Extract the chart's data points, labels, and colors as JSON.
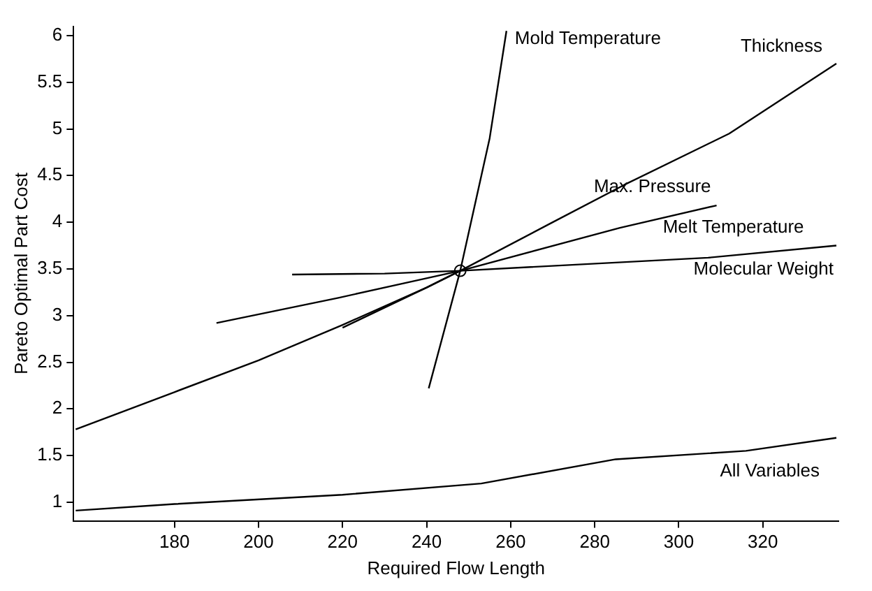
{
  "chart_data": {
    "type": "line",
    "xlabel": "Required Flow Length",
    "ylabel": "Pareto Optimal Part Cost",
    "xlim": [
      156,
      338
    ],
    "ylim": [
      0.8,
      6.1
    ],
    "xticks": [
      180,
      200,
      220,
      240,
      260,
      280,
      300,
      320
    ],
    "yticks": [
      1,
      1.5,
      2,
      2.5,
      3,
      3.5,
      4,
      4.5,
      5,
      5.5,
      6
    ],
    "grid": false,
    "legend": false,
    "marker": "none",
    "line_style": "solid",
    "series": [
      {
        "color": "#000000",
        "x": [
          156.5,
          180,
          200,
          220,
          240,
          248,
          270,
          287,
          312,
          337.5
        ],
        "values": [
          1.78,
          2.18,
          2.52,
          2.9,
          3.3,
          3.48,
          4.0,
          4.4,
          4.95,
          5.7
        ]
      },
      {
        "color": "#000000",
        "x": [
          220,
          240,
          248,
          286,
          309
        ],
        "values": [
          2.87,
          3.3,
          3.48,
          3.94,
          4.18
        ]
      },
      {
        "color": "#000000",
        "x": [
          190,
          219,
          236,
          248
        ],
        "values": [
          2.92,
          3.19,
          3.36,
          3.48
        ]
      },
      {
        "color": "#000000",
        "x": [
          208,
          230,
          248,
          307,
          337.5
        ],
        "values": [
          3.44,
          3.45,
          3.48,
          3.62,
          3.75
        ]
      },
      {
        "color": "#000000",
        "x": [
          240.5,
          248,
          255,
          259
        ],
        "values": [
          2.22,
          3.48,
          4.9,
          6.05
        ]
      },
      {
        "color": "#000000",
        "x": [
          156.5,
          180,
          220,
          253,
          285,
          316,
          337.5
        ],
        "values": [
          0.91,
          0.98,
          1.08,
          1.2,
          1.46,
          1.55,
          1.69
        ]
      },
      {
        "type": "scatter",
        "marker": "circle",
        "color": "#000000",
        "x": [
          248
        ],
        "values": [
          3.48
        ]
      }
    ],
    "annotations": [
      {
        "text": "Mold Temperature",
        "x": 259,
        "y": 6.05
      },
      {
        "text": "Thickness",
        "x": 337.5,
        "y": 5.7
      },
      {
        "text": "Max. Pressure",
        "x": 309,
        "y": 4.18
      },
      {
        "text": "Melt Temperature",
        "x": 309,
        "y": 4.18
      },
      {
        "text": "Molecular Weight",
        "x": 337.5,
        "y": 3.75
      },
      {
        "text": "All Variables",
        "x": 337.5,
        "y": 1.69
      }
    ]
  }
}
